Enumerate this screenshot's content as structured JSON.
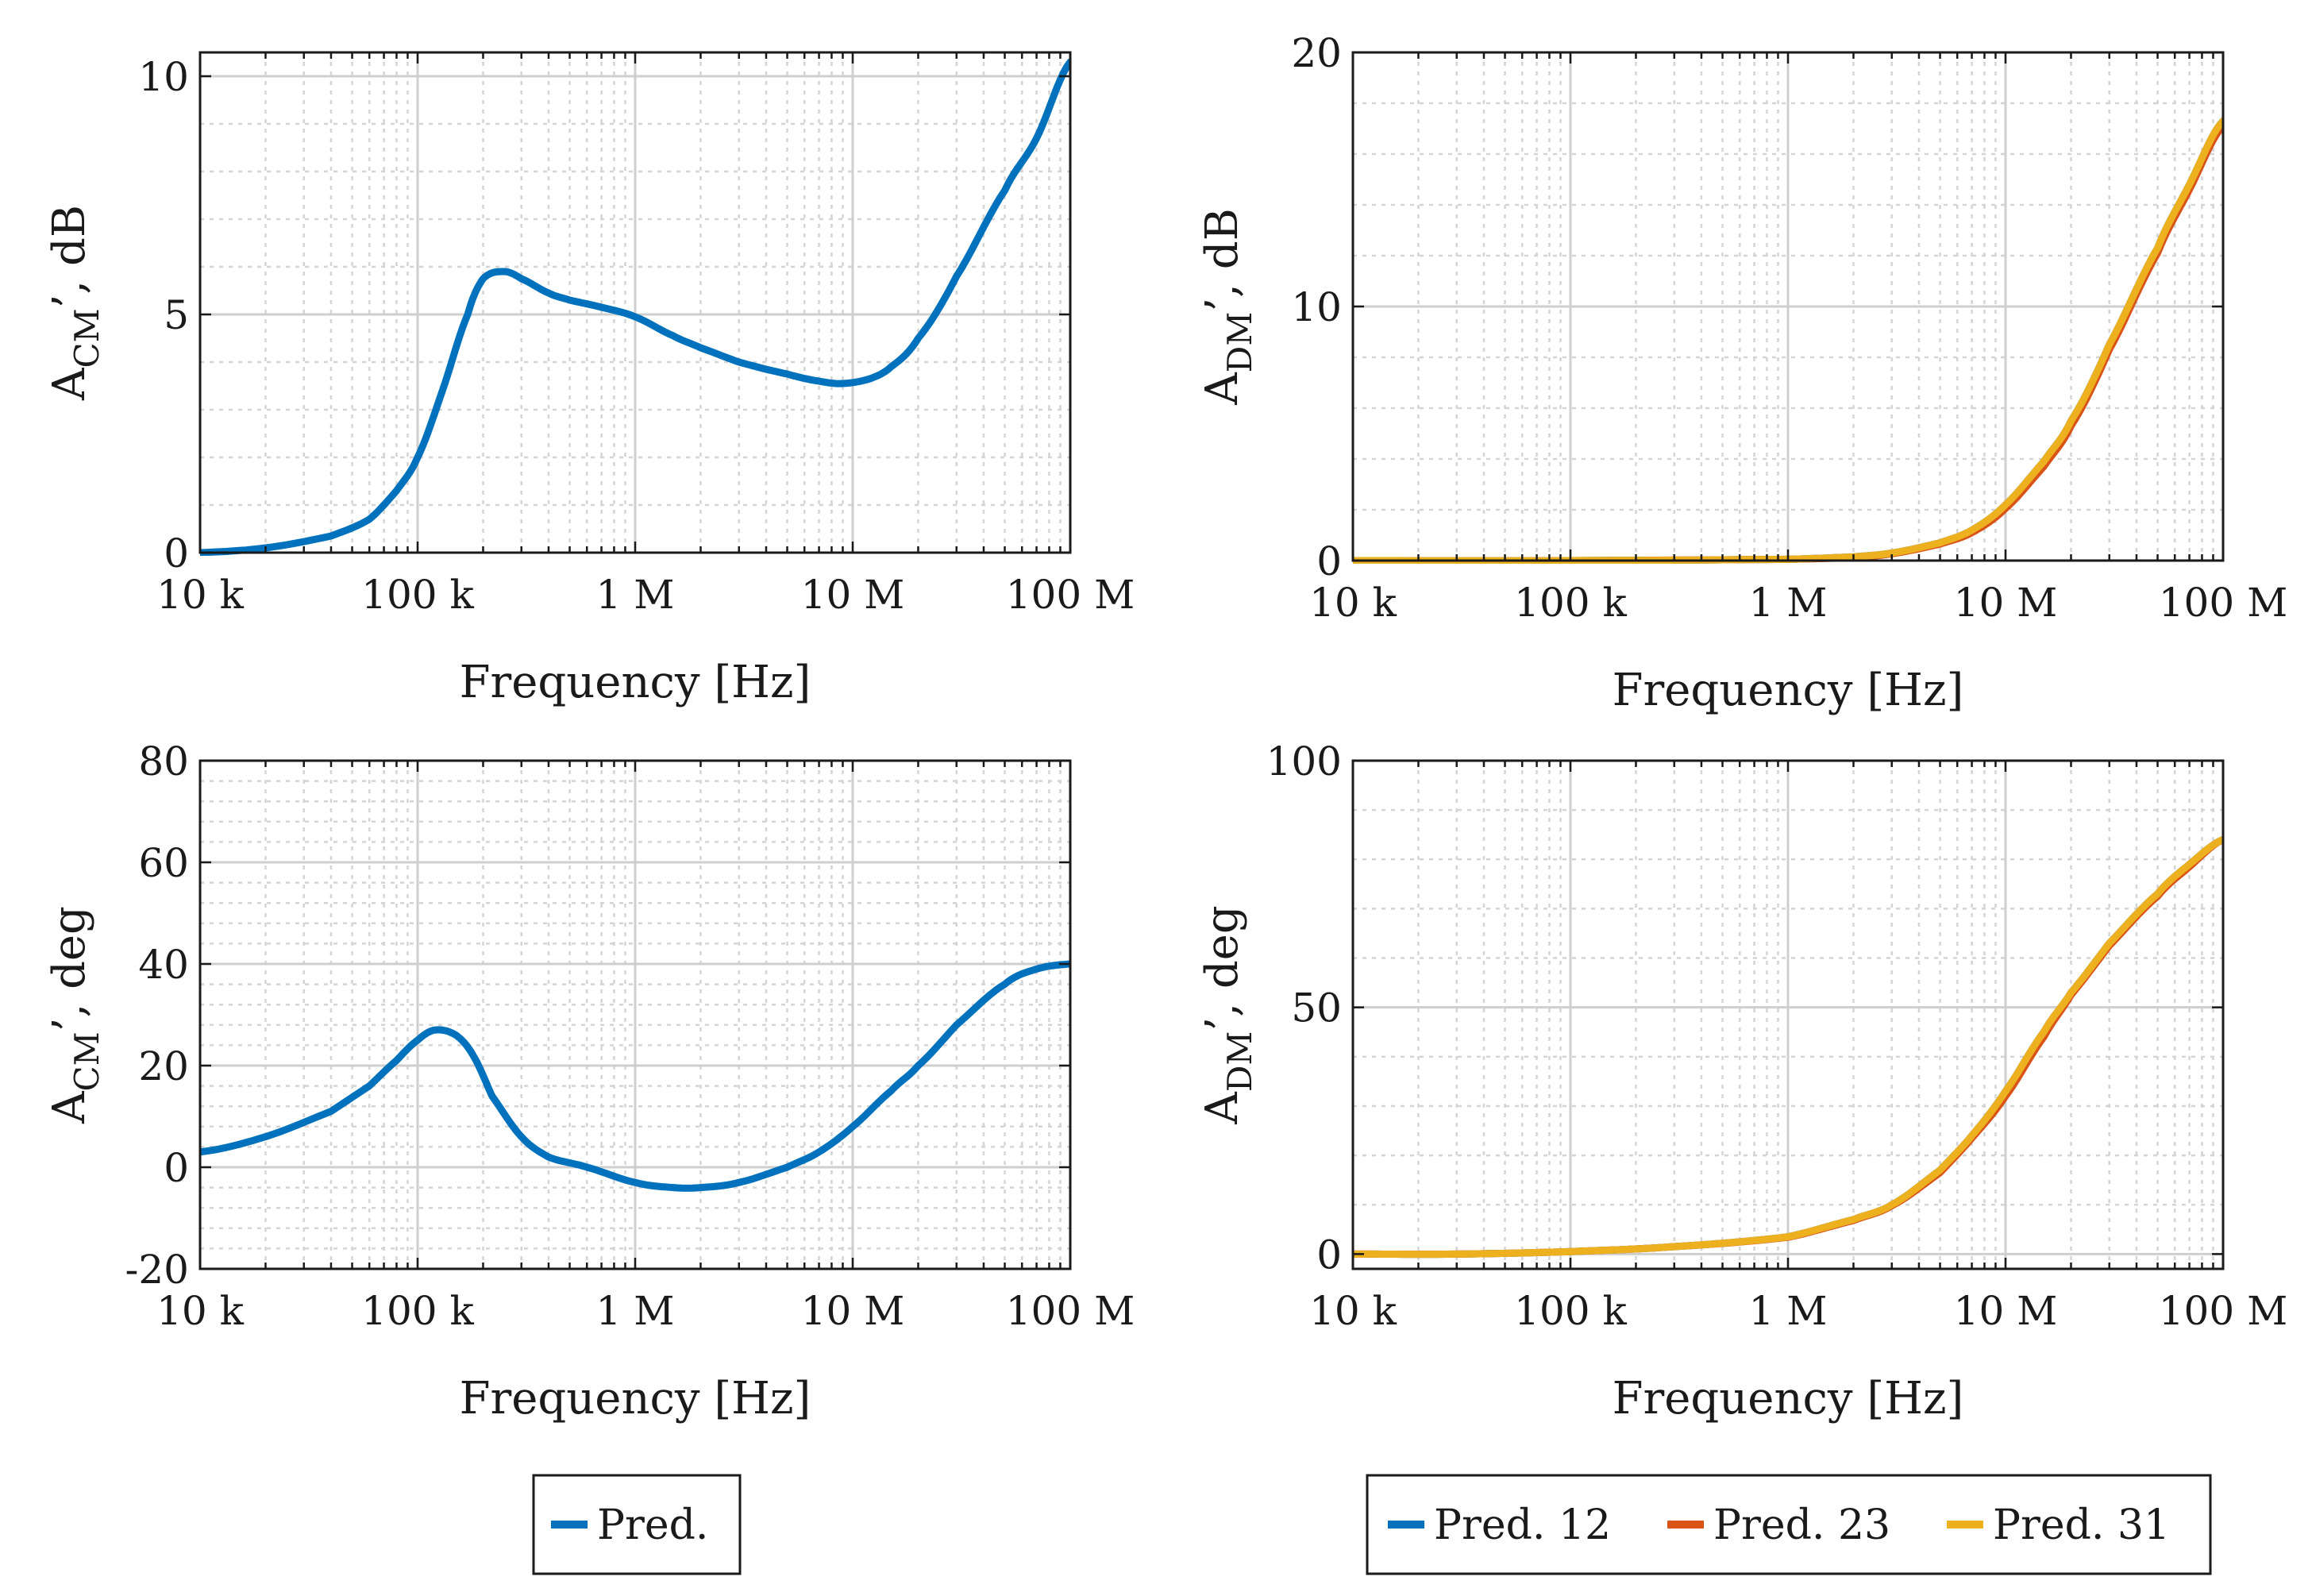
{
  "chart_data": [
    {
      "id": "cm-mag",
      "type": "line",
      "xscale": "log",
      "xlim": [
        10000,
        100000000
      ],
      "ylim": [
        0,
        10.5
      ],
      "xticks": [
        10000,
        100000,
        1000000,
        10000000,
        100000000
      ],
      "xtick_labels": [
        "10 k",
        "100 k",
        "1 M",
        "10 M",
        "100 M"
      ],
      "yticks": [
        0,
        5,
        10
      ],
      "ytick_labels": [
        "0",
        "5",
        "10"
      ],
      "xlabel": "Frequency [Hz]",
      "ylabel": {
        "main": "A",
        "sub": "CM",
        "suffix": "’, dB"
      },
      "grid": true,
      "series": [
        {
          "name": "Pred.",
          "color": "#0072BD",
          "x": [
            10000,
            20000,
            40000,
            60000,
            80000,
            100000,
            130000,
            170000,
            200000,
            250000,
            300000,
            400000,
            500000,
            700000,
            1000000,
            1500000,
            2000000,
            3000000,
            5000000,
            7000000,
            9000000,
            12000000,
            15000000,
            20000000,
            30000000,
            50000000,
            70000000,
            100000000
          ],
          "y": [
            0.0,
            0.1,
            0.35,
            0.7,
            1.3,
            2.0,
            3.4,
            5.0,
            5.75,
            5.9,
            5.75,
            5.45,
            5.3,
            5.15,
            4.95,
            4.55,
            4.3,
            4.0,
            3.75,
            3.6,
            3.55,
            3.65,
            3.9,
            4.5,
            5.8,
            7.6,
            8.7,
            10.3
          ]
        }
      ]
    },
    {
      "id": "dm-mag",
      "type": "line",
      "xscale": "log",
      "xlim": [
        10000,
        100000000
      ],
      "ylim": [
        0,
        20
      ],
      "xticks": [
        10000,
        100000,
        1000000,
        10000000,
        100000000
      ],
      "xtick_labels": [
        "10 k",
        "100 k",
        "1 M",
        "10 M",
        "100 M"
      ],
      "yticks": [
        0,
        10,
        20
      ],
      "ytick_labels": [
        "0",
        "10",
        "20"
      ],
      "xlabel": "Frequency [Hz]",
      "ylabel": {
        "main": "A",
        "sub": "DM",
        "suffix": "’, dB"
      },
      "grid": true,
      "series": [
        {
          "name": "Pred. 12",
          "color": "#0072BD",
          "x": [
            10000,
            100000,
            1000000,
            2000000,
            3000000,
            5000000,
            7000000,
            10000000,
            15000000,
            20000000,
            30000000,
            50000000,
            70000000,
            100000000
          ],
          "y": [
            0.0,
            0.0,
            0.05,
            0.15,
            0.3,
            0.7,
            1.2,
            2.2,
            3.9,
            5.5,
            8.5,
            12.3,
            14.8,
            17.3
          ]
        },
        {
          "name": "Pred. 23",
          "color": "#D95319",
          "x": [
            10000,
            100000,
            1000000,
            2000000,
            3000000,
            5000000,
            7000000,
            10000000,
            15000000,
            20000000,
            30000000,
            50000000,
            70000000,
            100000000
          ],
          "y": [
            0.0,
            0.0,
            0.05,
            0.12,
            0.27,
            0.65,
            1.1,
            2.05,
            3.7,
            5.3,
            8.3,
            12.1,
            14.6,
            17.1
          ]
        },
        {
          "name": "Pred. 31",
          "color": "#EDB120",
          "x": [
            10000,
            100000,
            1000000,
            2000000,
            3000000,
            5000000,
            7000000,
            10000000,
            15000000,
            20000000,
            30000000,
            50000000,
            70000000,
            100000000
          ],
          "y": [
            0.0,
            0.0,
            0.05,
            0.15,
            0.3,
            0.7,
            1.2,
            2.2,
            3.9,
            5.5,
            8.5,
            12.3,
            14.8,
            17.3
          ]
        }
      ]
    },
    {
      "id": "cm-phase",
      "type": "line",
      "xscale": "log",
      "xlim": [
        10000,
        100000000
      ],
      "ylim": [
        -20,
        80
      ],
      "xticks": [
        10000,
        100000,
        1000000,
        10000000,
        100000000
      ],
      "xtick_labels": [
        "10 k",
        "100 k",
        "1 M",
        "10 M",
        "100 M"
      ],
      "yticks": [
        -20,
        0,
        20,
        40,
        60,
        80
      ],
      "ytick_labels": [
        "-20",
        "0",
        "20",
        "40",
        "60",
        "80"
      ],
      "xlabel": "Frequency [Hz]",
      "ylabel": {
        "main": "A",
        "sub": "CM",
        "suffix": "’, deg"
      },
      "grid": true,
      "series": [
        {
          "name": "Pred.",
          "color": "#0072BD",
          "x": [
            10000,
            20000,
            40000,
            60000,
            80000,
            100000,
            120000,
            150000,
            180000,
            220000,
            300000,
            400000,
            600000,
            1000000,
            1500000,
            2000000,
            3000000,
            5000000,
            7000000,
            10000000,
            15000000,
            20000000,
            30000000,
            50000000,
            70000000,
            100000000
          ],
          "y": [
            3,
            6,
            11,
            16,
            21,
            25,
            27,
            26,
            22,
            14,
            6,
            2,
            0,
            -3,
            -4,
            -4,
            -3,
            0,
            3,
            8,
            15,
            20,
            28,
            36,
            39,
            40
          ]
        }
      ]
    },
    {
      "id": "dm-phase",
      "type": "line",
      "xscale": "log",
      "xlim": [
        10000,
        100000000
      ],
      "ylim": [
        -3,
        100
      ],
      "xticks": [
        10000,
        100000,
        1000000,
        10000000,
        100000000
      ],
      "xtick_labels": [
        "10 k",
        "100 k",
        "1 M",
        "10 M",
        "100 M"
      ],
      "yticks": [
        0,
        50,
        100
      ],
      "ytick_labels": [
        "0",
        "50",
        "100"
      ],
      "xlabel": "Frequency [Hz]",
      "ylabel": {
        "main": "A",
        "sub": "DM",
        "suffix": "’, deg"
      },
      "grid": true,
      "series": [
        {
          "name": "Pred. 12",
          "color": "#0072BD",
          "x": [
            10000,
            30000,
            100000,
            300000,
            1000000,
            2000000,
            3000000,
            5000000,
            7000000,
            10000000,
            15000000,
            20000000,
            30000000,
            50000000,
            70000000,
            100000000
          ],
          "y": [
            0,
            0,
            0.5,
            1.5,
            3.5,
            7,
            10,
            17,
            24,
            33,
            45,
            53,
            63,
            73,
            79,
            84
          ]
        },
        {
          "name": "Pred. 23",
          "color": "#D95319",
          "x": [
            10000,
            30000,
            100000,
            300000,
            1000000,
            2000000,
            3000000,
            5000000,
            7000000,
            10000000,
            15000000,
            20000000,
            30000000,
            50000000,
            70000000,
            100000000
          ],
          "y": [
            0,
            0,
            0.5,
            1.5,
            3.4,
            6.8,
            9.8,
            16.5,
            23.5,
            32,
            44,
            52.5,
            62.5,
            72.5,
            78.5,
            84
          ]
        },
        {
          "name": "Pred. 31",
          "color": "#EDB120",
          "x": [
            10000,
            30000,
            100000,
            300000,
            1000000,
            2000000,
            3000000,
            5000000,
            7000000,
            10000000,
            15000000,
            20000000,
            30000000,
            50000000,
            70000000,
            100000000
          ],
          "y": [
            0,
            0,
            0.5,
            1.5,
            3.5,
            7,
            10,
            17,
            24,
            33,
            45,
            53,
            63,
            73,
            79,
            84
          ]
        }
      ]
    }
  ],
  "legends": {
    "left": [
      {
        "label": "Pred.",
        "color": "#0072BD"
      }
    ],
    "right": [
      {
        "label": "Pred. 12",
        "color": "#0072BD"
      },
      {
        "label": "Pred. 23",
        "color": "#D95319"
      },
      {
        "label": "Pred. 31",
        "color": "#EDB120"
      }
    ]
  }
}
